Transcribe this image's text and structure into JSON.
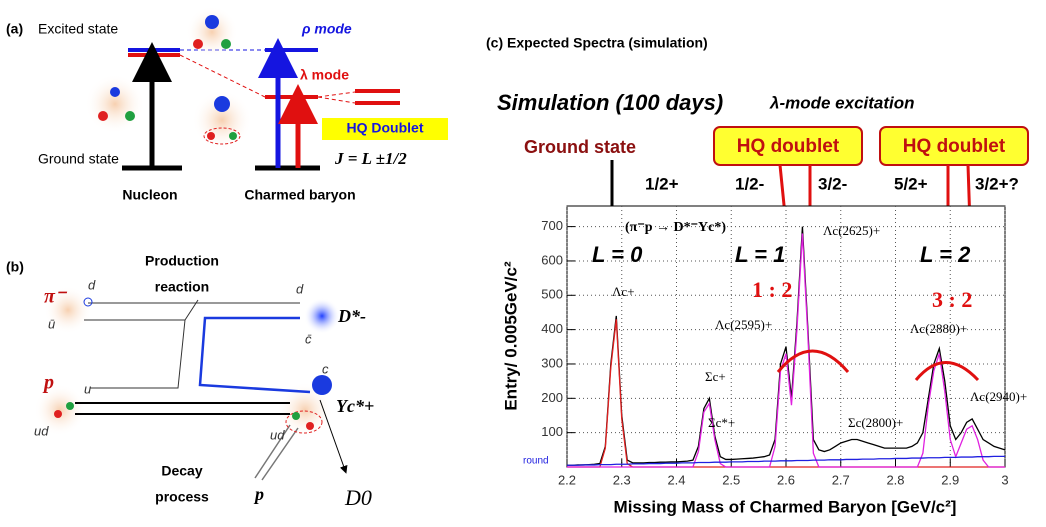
{
  "panel_a": {
    "label": "(a)",
    "excited": "Excited state",
    "ground": "Ground state",
    "nucleon": "Nucleon",
    "charmed": "Charmed baryon",
    "rho": "ρ mode",
    "lambda": "λ mode",
    "hq": "HQ Doublet",
    "j": "J = L ±1/2"
  },
  "panel_b": {
    "label": "(b)",
    "production": [
      "Production",
      "reaction"
    ],
    "decay": [
      "Decay",
      "process"
    ],
    "pi": "π⁻",
    "p": "p",
    "dstar": "D*-",
    "yc": "Yc*+",
    "p_out": "p",
    "d0": "D0",
    "quarks": [
      "d",
      "ū",
      "u",
      "ud",
      "d",
      "c̄",
      "c",
      "ud"
    ]
  },
  "chart_data": {
    "type": "line",
    "title": "(c) Expected Spectra (simulation)",
    "subtitle": "Simulation (100 days)",
    "x_label": "Missing Mass of Charmed Baryon  [GeV/c²]",
    "y_label": "Entry/ 0.005GeV/c²",
    "annotations": {
      "mode": "λ-mode excitation",
      "ground": "Ground state",
      "doublet1": "HQ doublet",
      "doublet2": "HQ doublet",
      "spins": [
        "1/2+",
        "1/2-",
        "3/2-",
        "5/2+",
        "3/2+?"
      ],
      "reaction": "(π⁻p → D*⁻Yc*)",
      "L": [
        "L = 0",
        "L = 1",
        "L = 2"
      ],
      "ratio1": "1 : 2",
      "ratio2": "3 : 2",
      "peaks": [
        "Λc+",
        "Σc+",
        "Σc*+",
        "Λc(2595)+",
        "Λc(2625)+",
        "Λc(2880)+",
        "Σc(2800)+",
        "Λc(2940)+"
      ],
      "bg": "round"
    },
    "x": [
      2.2,
      2.21,
      2.22,
      2.23,
      2.24,
      2.25,
      2.26,
      2.27,
      2.28,
      2.29,
      2.3,
      2.31,
      2.32,
      2.33,
      2.34,
      2.35,
      2.36,
      2.37,
      2.38,
      2.39,
      2.4,
      2.41,
      2.42,
      2.43,
      2.44,
      2.45,
      2.46,
      2.47,
      2.48,
      2.49,
      2.5,
      2.51,
      2.52,
      2.53,
      2.54,
      2.55,
      2.56,
      2.57,
      2.58,
      2.59,
      2.6,
      2.61,
      2.62,
      2.63,
      2.64,
      2.65,
      2.66,
      2.67,
      2.68,
      2.69,
      2.7,
      2.71,
      2.72,
      2.73,
      2.74,
      2.75,
      2.76,
      2.77,
      2.78,
      2.79,
      2.8,
      2.81,
      2.82,
      2.83,
      2.84,
      2.85,
      2.86,
      2.87,
      2.88,
      2.89,
      2.9,
      2.91,
      2.92,
      2.93,
      2.94,
      2.95,
      2.96,
      2.97,
      2.98,
      2.99,
      3.0
    ],
    "series": [
      {
        "color": "#000000",
        "values": [
          5,
          5,
          6,
          6,
          7,
          8,
          10,
          60,
          300,
          440,
          150,
          20,
          12,
          12,
          12,
          13,
          13,
          14,
          14,
          15,
          15,
          16,
          17,
          20,
          60,
          170,
          200,
          90,
          30,
          22,
          22,
          23,
          24,
          25,
          26,
          28,
          30,
          35,
          80,
          300,
          350,
          200,
          420,
          700,
          400,
          80,
          50,
          45,
          50,
          60,
          70,
          75,
          80,
          80,
          75,
          70,
          65,
          60,
          55,
          55,
          55,
          55,
          55,
          60,
          70,
          100,
          200,
          300,
          345,
          250,
          120,
          80,
          100,
          130,
          140,
          110,
          80,
          70,
          60,
          55,
          50
        ]
      },
      {
        "color": "#e02020",
        "values": [
          0,
          0,
          0,
          0,
          0,
          0,
          0,
          55,
          290,
          430,
          140,
          10,
          0,
          0,
          0,
          0,
          0,
          0,
          0,
          0,
          0,
          0,
          0,
          0,
          0,
          0,
          0,
          0,
          0,
          0,
          0,
          0,
          0,
          0,
          0,
          0,
          0,
          0,
          0,
          0,
          0,
          0,
          0,
          0,
          0,
          0,
          0,
          0,
          0,
          0,
          0,
          0,
          0,
          0,
          0,
          0,
          0,
          0,
          0,
          0,
          0,
          0,
          0,
          0,
          0,
          0,
          0,
          0,
          0,
          0,
          0,
          0,
          0,
          0,
          0,
          0,
          0,
          0,
          0,
          0,
          0
        ]
      },
      {
        "color": "#e020e0",
        "values": [
          0,
          0,
          0,
          0,
          0,
          0,
          0,
          0,
          0,
          0,
          0,
          0,
          0,
          0,
          0,
          0,
          0,
          0,
          0,
          0,
          0,
          0,
          0,
          0,
          45,
          160,
          185,
          80,
          10,
          0,
          0,
          0,
          0,
          0,
          0,
          0,
          0,
          0,
          60,
          280,
          330,
          180,
          400,
          680,
          380,
          40,
          0,
          0,
          0,
          0,
          0,
          0,
          0,
          0,
          0,
          0,
          0,
          0,
          0,
          0,
          0,
          0,
          0,
          0,
          0,
          40,
          180,
          280,
          330,
          220,
          80,
          30,
          70,
          110,
          120,
          80,
          20,
          0,
          0,
          0,
          0
        ]
      },
      {
        "color": "#2020e0",
        "values": [
          5,
          5,
          5,
          6,
          6,
          6,
          7,
          7,
          7,
          8,
          8,
          8,
          9,
          9,
          9,
          10,
          10,
          10,
          11,
          11,
          11,
          12,
          12,
          12,
          13,
          13,
          13,
          14,
          14,
          14,
          15,
          15,
          15,
          16,
          16,
          16,
          17,
          17,
          17,
          18,
          18,
          18,
          19,
          19,
          19,
          20,
          20,
          20,
          21,
          21,
          21,
          22,
          22,
          22,
          23,
          23,
          23,
          24,
          24,
          24,
          25,
          25,
          25,
          26,
          26,
          26,
          27,
          27,
          27,
          28,
          28,
          28,
          29,
          29,
          29,
          30,
          30,
          30,
          31,
          31,
          31
        ]
      }
    ],
    "xlim": [
      2.2,
      3.0
    ],
    "xticks": [
      2.2,
      2.3,
      2.4,
      2.5,
      2.6,
      2.7,
      2.8,
      2.9,
      3
    ],
    "ylim": [
      0,
      760
    ],
    "yticks": [
      100,
      200,
      300,
      400,
      500,
      600,
      700
    ],
    "grid": true
  }
}
